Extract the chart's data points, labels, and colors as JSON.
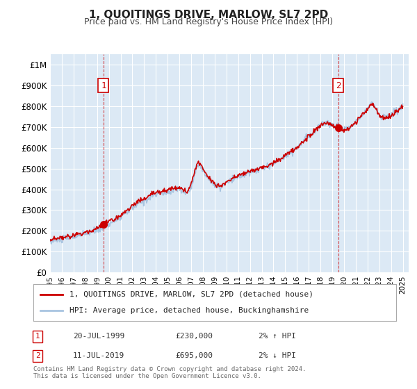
{
  "title": "1, QUOITINGS DRIVE, MARLOW, SL7 2PD",
  "subtitle": "Price paid vs. HM Land Registry's House Price Index (HPI)",
  "ylabel": "",
  "background_color": "#ffffff",
  "plot_bg_color": "#dce9f5",
  "grid_color": "#ffffff",
  "hpi_color": "#a8c4e0",
  "price_color": "#cc0000",
  "ylim": [
    0,
    1050000
  ],
  "yticks": [
    0,
    100000,
    200000,
    300000,
    400000,
    500000,
    600000,
    700000,
    800000,
    900000,
    1000000
  ],
  "ytick_labels": [
    "£0",
    "£100K",
    "£200K",
    "£300K",
    "£400K",
    "£500K",
    "£600K",
    "£700K",
    "£800K",
    "£900K",
    "£1M"
  ],
  "xlim_start": 1995.0,
  "xlim_end": 2025.5,
  "xticks": [
    1995,
    1996,
    1997,
    1998,
    1999,
    2000,
    2001,
    2002,
    2003,
    2004,
    2005,
    2006,
    2007,
    2008,
    2009,
    2010,
    2011,
    2012,
    2013,
    2014,
    2015,
    2016,
    2017,
    2018,
    2019,
    2020,
    2021,
    2022,
    2023,
    2024,
    2025
  ],
  "sale1_x": 1999.54,
  "sale1_y": 230000,
  "sale1_label": "1",
  "sale2_x": 2019.53,
  "sale2_y": 695000,
  "sale2_label": "2",
  "legend_line1": "1, QUOITINGS DRIVE, MARLOW, SL7 2PD (detached house)",
  "legend_line2": "HPI: Average price, detached house, Buckinghamshire",
  "annotation1_date": "20-JUL-1999",
  "annotation1_price": "£230,000",
  "annotation1_hpi": "2% ↑ HPI",
  "annotation2_date": "11-JUL-2019",
  "annotation2_price": "£695,000",
  "annotation2_hpi": "2% ↓ HPI",
  "footer": "Contains HM Land Registry data © Crown copyright and database right 2024.\nThis data is licensed under the Open Government Licence v3.0."
}
